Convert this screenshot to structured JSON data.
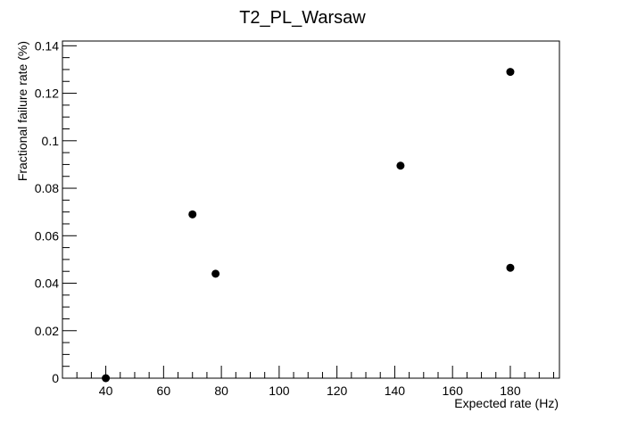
{
  "chart_data": {
    "type": "scatter",
    "title": "T2_PL_Warsaw",
    "xlabel": "Expected rate (Hz)",
    "ylabel": "Fractional failure rate (%)",
    "xlim": [
      25,
      197
    ],
    "ylim": [
      0,
      0.142
    ],
    "x_ticks": [
      40,
      60,
      80,
      100,
      120,
      140,
      160,
      180
    ],
    "y_ticks": [
      0,
      0.02,
      0.04,
      0.06,
      0.08,
      0.1,
      0.12,
      0.14
    ],
    "x_tick_labels": [
      "40",
      "60",
      "80",
      "100",
      "120",
      "140",
      "160",
      "180"
    ],
    "y_tick_labels": [
      "0",
      "0.02",
      "0.04",
      "0.06",
      "0.08",
      "0.1",
      "0.12",
      "0.14"
    ],
    "grid": false,
    "legend": "none",
    "marker_color": "#000000",
    "points": [
      {
        "x": 40,
        "y": 0.0
      },
      {
        "x": 70,
        "y": 0.069
      },
      {
        "x": 78,
        "y": 0.044
      },
      {
        "x": 142,
        "y": 0.0895
      },
      {
        "x": 180,
        "y": 0.129
      },
      {
        "x": 180,
        "y": 0.0465
      }
    ]
  }
}
